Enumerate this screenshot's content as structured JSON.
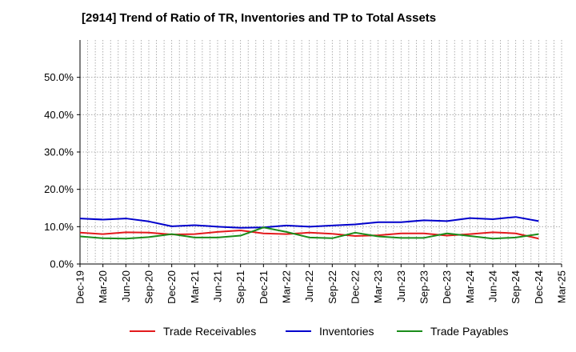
{
  "chart_data": {
    "type": "line",
    "title": "[2914]  Trend of Ratio of TR, Inventories and TP to Total Assets",
    "xlabel": "",
    "ylabel": "",
    "ylim": [
      0,
      60
    ],
    "y_ticks": [
      0,
      10,
      20,
      30,
      40,
      50
    ],
    "y_tick_labels": [
      "0.0%",
      "10.0%",
      "20.0%",
      "30.0%",
      "40.0%",
      "50.0%"
    ],
    "x_tick_labels": [
      "Dec-19",
      "Mar-20",
      "Jun-20",
      "Sep-20",
      "Dec-20",
      "Mar-21",
      "Jun-21",
      "Sep-21",
      "Dec-21",
      "Mar-22",
      "Jun-22",
      "Sep-22",
      "Dec-22",
      "Mar-23",
      "Jun-23",
      "Sep-23",
      "Dec-23",
      "Mar-24",
      "Jun-24",
      "Sep-24",
      "Dec-24",
      "Mar-25"
    ],
    "grid": true,
    "legend_position": "bottom",
    "x": [
      "2019-12",
      "2020-01",
      "2020-02",
      "2020-03",
      "2020-04",
      "2020-05",
      "2020-06",
      "2020-07",
      "2020-08",
      "2020-09",
      "2020-10",
      "2020-11",
      "2020-12",
      "2021-01",
      "2021-02",
      "2021-03",
      "2021-04",
      "2021-05",
      "2021-06",
      "2021-07",
      "2021-08",
      "2021-09",
      "2021-10",
      "2021-11",
      "2021-12",
      "2022-01",
      "2022-02",
      "2022-03",
      "2022-04",
      "2022-05",
      "2022-06",
      "2022-07",
      "2022-08",
      "2022-09",
      "2022-10",
      "2022-11",
      "2022-12",
      "2023-01",
      "2023-02",
      "2023-03",
      "2023-04",
      "2023-05",
      "2023-06",
      "2023-07",
      "2023-08",
      "2023-09",
      "2023-10",
      "2023-11",
      "2023-12",
      "2024-01",
      "2024-02",
      "2024-03",
      "2024-04",
      "2024-05",
      "2024-06",
      "2024-07",
      "2024-08",
      "2024-09",
      "2024-10",
      "2024-11",
      "2024-12"
    ],
    "series": [
      {
        "name": "Trade Receivables",
        "color": "#e31a1c",
        "points": [
          [
            "2019-12",
            8.4
          ],
          [
            "2020-03",
            8.0
          ],
          [
            "2020-06",
            8.5
          ],
          [
            "2020-09",
            8.4
          ],
          [
            "2020-12",
            7.9
          ],
          [
            "2021-03",
            8.0
          ],
          [
            "2021-06",
            8.6
          ],
          [
            "2021-09",
            9.0
          ],
          [
            "2021-12",
            8.2
          ],
          [
            "2022-03",
            8.0
          ],
          [
            "2022-06",
            8.4
          ],
          [
            "2022-09",
            8.1
          ],
          [
            "2022-12",
            7.5
          ],
          [
            "2023-03",
            7.7
          ],
          [
            "2023-06",
            8.2
          ],
          [
            "2023-09",
            8.2
          ],
          [
            "2023-12",
            7.6
          ],
          [
            "2024-03",
            8.0
          ],
          [
            "2024-06",
            8.5
          ],
          [
            "2024-09",
            8.2
          ],
          [
            "2024-12",
            6.8
          ]
        ]
      },
      {
        "name": "Inventories",
        "color": "#0000cc",
        "points": [
          [
            "2019-12",
            12.2
          ],
          [
            "2020-03",
            11.9
          ],
          [
            "2020-06",
            12.2
          ],
          [
            "2020-09",
            11.4
          ],
          [
            "2020-12",
            10.1
          ],
          [
            "2021-03",
            10.4
          ],
          [
            "2021-06",
            10.0
          ],
          [
            "2021-09",
            9.7
          ],
          [
            "2021-12",
            9.8
          ],
          [
            "2022-03",
            10.3
          ],
          [
            "2022-06",
            10.0
          ],
          [
            "2022-09",
            10.3
          ],
          [
            "2022-12",
            10.6
          ],
          [
            "2023-03",
            11.2
          ],
          [
            "2023-06",
            11.2
          ],
          [
            "2023-09",
            11.7
          ],
          [
            "2023-12",
            11.5
          ],
          [
            "2024-03",
            12.3
          ],
          [
            "2024-06",
            12.0
          ],
          [
            "2024-09",
            12.6
          ],
          [
            "2024-12",
            11.5
          ]
        ]
      },
      {
        "name": "Trade Payables",
        "color": "#1a8c1a",
        "points": [
          [
            "2019-12",
            7.4
          ],
          [
            "2020-03",
            6.9
          ],
          [
            "2020-06",
            6.8
          ],
          [
            "2020-09",
            7.2
          ],
          [
            "2020-12",
            8.0
          ],
          [
            "2021-03",
            7.1
          ],
          [
            "2021-06",
            7.1
          ],
          [
            "2021-09",
            7.6
          ],
          [
            "2021-12",
            9.8
          ],
          [
            "2022-03",
            8.6
          ],
          [
            "2022-06",
            7.1
          ],
          [
            "2022-09",
            6.9
          ],
          [
            "2022-12",
            8.4
          ],
          [
            "2023-03",
            7.4
          ],
          [
            "2023-06",
            7.0
          ],
          [
            "2023-09",
            7.0
          ],
          [
            "2023-12",
            8.2
          ],
          [
            "2024-03",
            7.5
          ],
          [
            "2024-06",
            6.8
          ],
          [
            "2024-09",
            7.1
          ],
          [
            "2024-12",
            8.0
          ]
        ]
      }
    ]
  }
}
